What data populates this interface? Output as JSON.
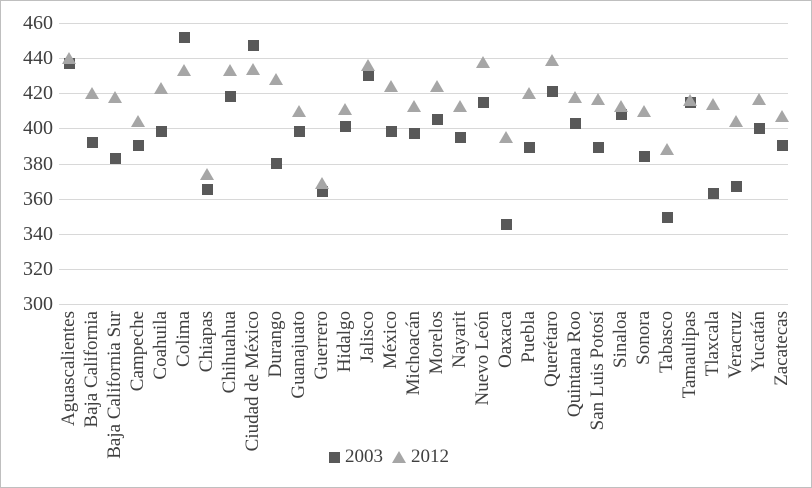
{
  "chart_data": {
    "type": "scatter",
    "title": "",
    "xlabel": "",
    "ylabel": "",
    "ylim": [
      300,
      460
    ],
    "yticks": [
      460,
      440,
      420,
      400,
      380,
      360,
      340,
      320,
      300
    ],
    "grid": "horizontal",
    "legend_position": "bottom-center",
    "categories": [
      "Aguascalientes",
      "Baja California",
      "Baja California Sur",
      "Campeche",
      "Coahuila",
      "Colima",
      "Chiapas",
      "Chihuahua",
      "Ciudad de México",
      "Durango",
      "Guanajuato",
      "Guerrero",
      "Hidalgo",
      "Jalisco",
      "México",
      "Michoacán",
      "Morelos",
      "Nayarit",
      "Nuevo León",
      "Oaxaca",
      "Puebla",
      "Querétaro",
      "Quintana Roo",
      "San Luis Potosí",
      "Sinaloa",
      "Sonora",
      "Tabasco",
      "Tamaulipas",
      "Tlaxcala",
      "Veracruz",
      "Yucatán",
      "Zacatecas"
    ],
    "series": [
      {
        "name": "2003",
        "marker": "square",
        "color": "#595959",
        "values": [
          437,
          392,
          383,
          390,
          398,
          452,
          365,
          418,
          447,
          380,
          398,
          364,
          401,
          430,
          398,
          397,
          405,
          395,
          415,
          345,
          389,
          421,
          403,
          389,
          408,
          384,
          349,
          415,
          363,
          367,
          400,
          390
        ]
      },
      {
        "name": "2012",
        "marker": "triangle",
        "color": "#a6a6a6",
        "values": [
          440,
          420,
          418,
          404,
          423,
          433,
          374,
          433,
          434,
          428,
          410,
          369,
          411,
          436,
          424,
          413,
          424,
          413,
          438,
          395,
          420,
          439,
          418,
          417,
          413,
          410,
          388,
          416,
          414,
          404,
          417,
          407
        ]
      }
    ]
  },
  "colors": {
    "grid": "#d8d8d8",
    "frame": "#bfbfbf",
    "text": "#404040",
    "series_2003": "#595959",
    "series_2012": "#a6a6a6"
  },
  "legend": {
    "items": [
      {
        "label": "2003",
        "icon": "square-marker-icon"
      },
      {
        "label": "2012",
        "icon": "triangle-marker-icon"
      }
    ]
  }
}
